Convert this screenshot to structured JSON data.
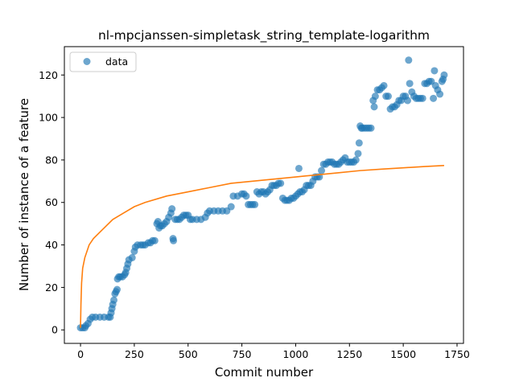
{
  "chart_data": {
    "type": "scatter",
    "title": "nl-mpcjanssen-simpletask_string_template-logarithm",
    "xlabel": "Commit number",
    "ylabel": "Number of instance of a feature",
    "xlim": [
      -75,
      1780
    ],
    "ylim": [
      -6.35,
      133.35
    ],
    "xticks": [
      0,
      250,
      500,
      750,
      1000,
      1250,
      1500,
      1750
    ],
    "yticks": [
      0,
      20,
      40,
      60,
      80,
      100,
      120
    ],
    "legend": {
      "placement": "upper-left",
      "entries": [
        "data"
      ]
    },
    "grid": false,
    "series": [
      {
        "name": "data",
        "kind": "scatter",
        "color": "#1f77b4",
        "alpha": 0.65,
        "points": [
          [
            0,
            1
          ],
          [
            10,
            1
          ],
          [
            20,
            1
          ],
          [
            25,
            2
          ],
          [
            35,
            3
          ],
          [
            45,
            5
          ],
          [
            55,
            6
          ],
          [
            70,
            6
          ],
          [
            90,
            6
          ],
          [
            110,
            6
          ],
          [
            130,
            6
          ],
          [
            138,
            6
          ],
          [
            142,
            8
          ],
          [
            146,
            10
          ],
          [
            150,
            12
          ],
          [
            155,
            14
          ],
          [
            160,
            17
          ],
          [
            165,
            18
          ],
          [
            170,
            19
          ],
          [
            172,
            24
          ],
          [
            178,
            25
          ],
          [
            185,
            25
          ],
          [
            195,
            25
          ],
          [
            205,
            26
          ],
          [
            210,
            27
          ],
          [
            215,
            29
          ],
          [
            220,
            31
          ],
          [
            225,
            33
          ],
          [
            240,
            34
          ],
          [
            250,
            37
          ],
          [
            255,
            39
          ],
          [
            265,
            40
          ],
          [
            280,
            40
          ],
          [
            290,
            40
          ],
          [
            300,
            40
          ],
          [
            315,
            41
          ],
          [
            325,
            41
          ],
          [
            335,
            42
          ],
          [
            345,
            42
          ],
          [
            355,
            50
          ],
          [
            360,
            51
          ],
          [
            365,
            48
          ],
          [
            372,
            49
          ],
          [
            380,
            49
          ],
          [
            390,
            50
          ],
          [
            400,
            51
          ],
          [
            410,
            53
          ],
          [
            420,
            55
          ],
          [
            425,
            57
          ],
          [
            430,
            43
          ],
          [
            432,
            42
          ],
          [
            440,
            52
          ],
          [
            450,
            52
          ],
          [
            460,
            52
          ],
          [
            470,
            53
          ],
          [
            480,
            54
          ],
          [
            490,
            54
          ],
          [
            500,
            54
          ],
          [
            510,
            52
          ],
          [
            520,
            52
          ],
          [
            540,
            52
          ],
          [
            560,
            52
          ],
          [
            580,
            53
          ],
          [
            590,
            55
          ],
          [
            600,
            56
          ],
          [
            620,
            56
          ],
          [
            640,
            56
          ],
          [
            660,
            56
          ],
          [
            680,
            56
          ],
          [
            700,
            58
          ],
          [
            710,
            63
          ],
          [
            730,
            63
          ],
          [
            750,
            64
          ],
          [
            760,
            64
          ],
          [
            770,
            63
          ],
          [
            780,
            59
          ],
          [
            790,
            59
          ],
          [
            800,
            59
          ],
          [
            810,
            59
          ],
          [
            820,
            65
          ],
          [
            830,
            64
          ],
          [
            840,
            65
          ],
          [
            850,
            65
          ],
          [
            860,
            64
          ],
          [
            870,
            65
          ],
          [
            880,
            66
          ],
          [
            890,
            68
          ],
          [
            900,
            68
          ],
          [
            910,
            68
          ],
          [
            920,
            69
          ],
          [
            930,
            69
          ],
          [
            940,
            62
          ],
          [
            950,
            61
          ],
          [
            960,
            61
          ],
          [
            970,
            61
          ],
          [
            980,
            62
          ],
          [
            990,
            62
          ],
          [
            1000,
            63
          ],
          [
            1010,
            64
          ],
          [
            1015,
            76
          ],
          [
            1020,
            65
          ],
          [
            1030,
            65
          ],
          [
            1040,
            66
          ],
          [
            1050,
            68
          ],
          [
            1060,
            68
          ],
          [
            1070,
            68
          ],
          [
            1080,
            70
          ],
          [
            1090,
            72
          ],
          [
            1100,
            72
          ],
          [
            1110,
            72
          ],
          [
            1120,
            75
          ],
          [
            1130,
            78
          ],
          [
            1140,
            78
          ],
          [
            1150,
            79
          ],
          [
            1160,
            79
          ],
          [
            1170,
            79
          ],
          [
            1180,
            78
          ],
          [
            1190,
            78
          ],
          [
            1200,
            78
          ],
          [
            1210,
            79
          ],
          [
            1220,
            80
          ],
          [
            1230,
            81
          ],
          [
            1240,
            79
          ],
          [
            1250,
            79
          ],
          [
            1260,
            79
          ],
          [
            1270,
            79
          ],
          [
            1280,
            80
          ],
          [
            1290,
            83
          ],
          [
            1295,
            88
          ],
          [
            1300,
            96
          ],
          [
            1305,
            95
          ],
          [
            1310,
            95
          ],
          [
            1320,
            95
          ],
          [
            1330,
            95
          ],
          [
            1340,
            95
          ],
          [
            1350,
            95
          ],
          [
            1360,
            108
          ],
          [
            1365,
            105
          ],
          [
            1370,
            110
          ],
          [
            1380,
            113
          ],
          [
            1390,
            113
          ],
          [
            1400,
            114
          ],
          [
            1410,
            115
          ],
          [
            1420,
            110
          ],
          [
            1430,
            110
          ],
          [
            1440,
            104
          ],
          [
            1450,
            105
          ],
          [
            1460,
            105
          ],
          [
            1470,
            106
          ],
          [
            1480,
            108
          ],
          [
            1490,
            108
          ],
          [
            1500,
            110
          ],
          [
            1510,
            110
          ],
          [
            1520,
            108
          ],
          [
            1525,
            127
          ],
          [
            1530,
            116
          ],
          [
            1540,
            112
          ],
          [
            1550,
            110
          ],
          [
            1560,
            109
          ],
          [
            1570,
            109
          ],
          [
            1580,
            109
          ],
          [
            1590,
            109
          ],
          [
            1600,
            116
          ],
          [
            1610,
            116
          ],
          [
            1620,
            117
          ],
          [
            1630,
            117
          ],
          [
            1640,
            109
          ],
          [
            1645,
            122
          ],
          [
            1650,
            115
          ],
          [
            1660,
            113
          ],
          [
            1670,
            111
          ],
          [
            1680,
            117
          ],
          [
            1685,
            118
          ],
          [
            1690,
            120
          ]
        ]
      },
      {
        "name": "",
        "kind": "line",
        "color": "#ff7f0e",
        "description_of_curve": "logarithmic fit",
        "curve_points": [
          [
            0,
            1
          ],
          [
            2,
            12
          ],
          [
            5,
            22
          ],
          [
            10,
            29
          ],
          [
            20,
            34
          ],
          [
            40,
            40
          ],
          [
            60,
            43
          ],
          [
            100,
            47
          ],
          [
            150,
            52
          ],
          [
            200,
            55
          ],
          [
            250,
            58
          ],
          [
            300,
            60
          ],
          [
            400,
            63
          ],
          [
            500,
            65
          ],
          [
            600,
            67
          ],
          [
            700,
            69
          ],
          [
            800,
            70
          ],
          [
            900,
            71
          ],
          [
            1000,
            72
          ],
          [
            1100,
            73
          ],
          [
            1200,
            74
          ],
          [
            1300,
            75
          ],
          [
            1400,
            75.7
          ],
          [
            1500,
            76.3
          ],
          [
            1600,
            76.9
          ],
          [
            1690,
            77.4
          ]
        ]
      }
    ]
  }
}
